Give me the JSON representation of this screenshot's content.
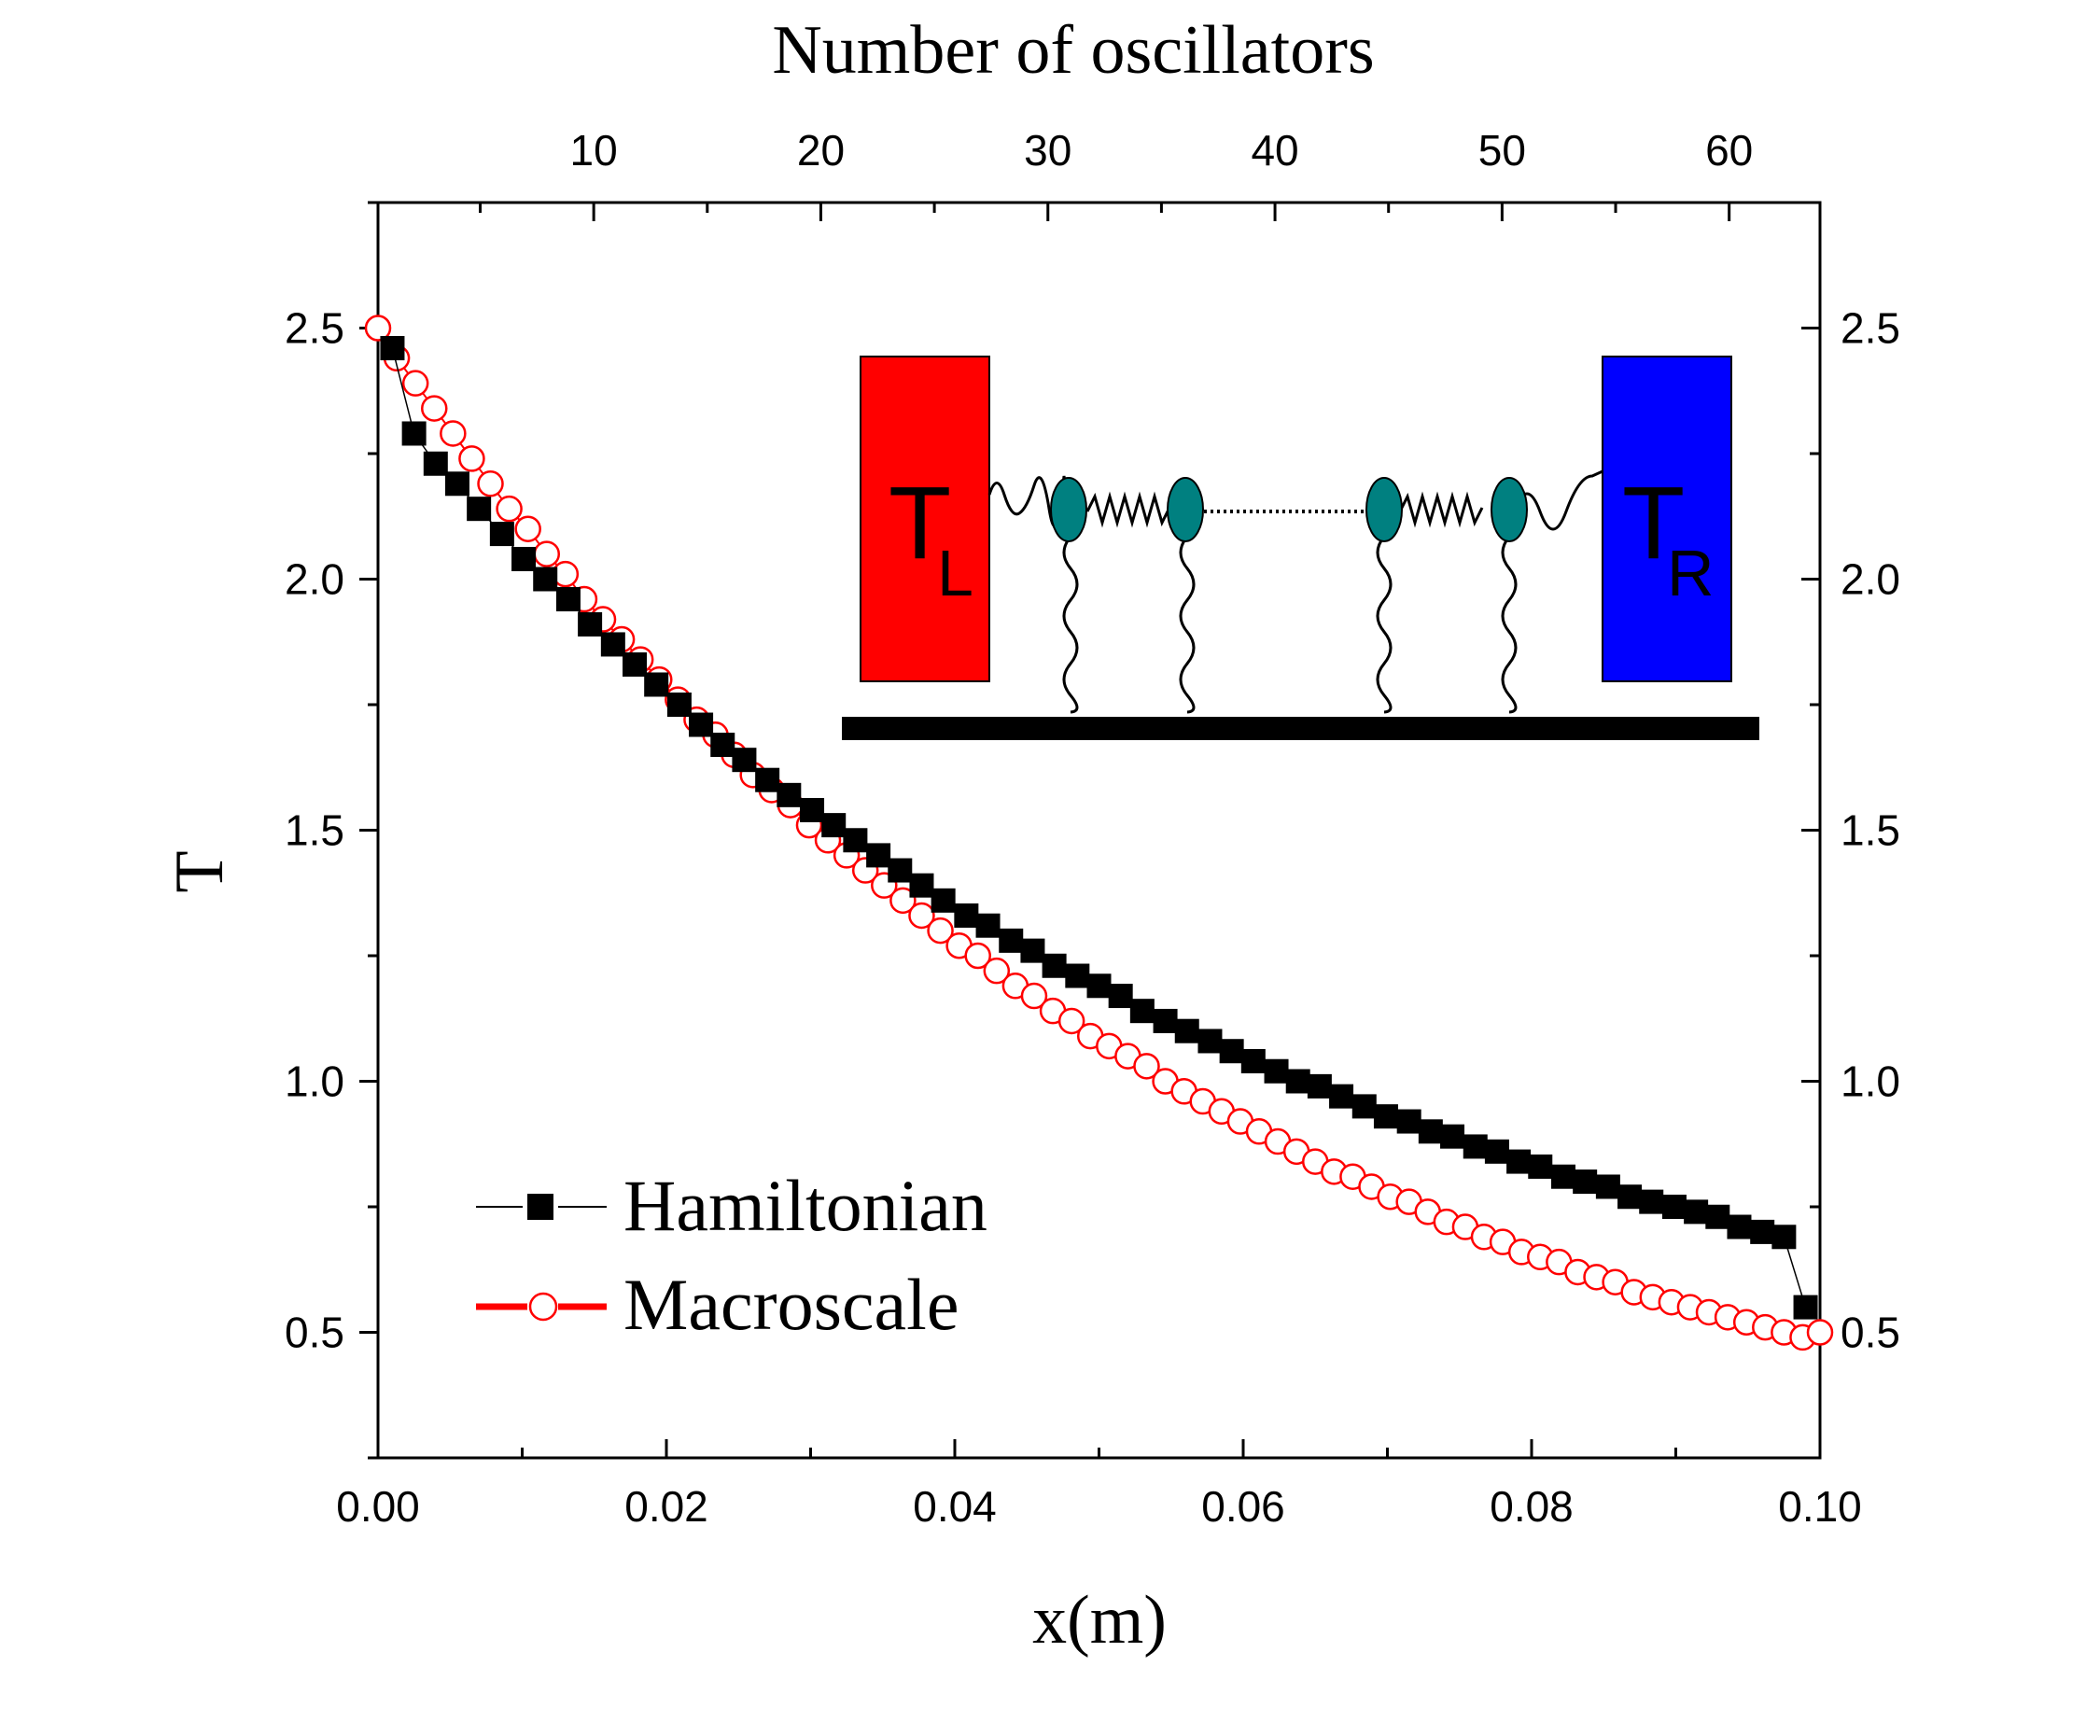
{
  "chart_data": {
    "type": "scatter",
    "title": "",
    "xlabel": "x(m)",
    "ylabel": "T",
    "top_xlabel": "Number of oscillators",
    "xlim": [
      0.0,
      0.1
    ],
    "ylim": [
      0.25,
      2.75
    ],
    "top_xlim": [
      0.5,
      64
    ],
    "x_ticks": [
      "0.00",
      "0.02",
      "0.04",
      "0.06",
      "0.08",
      "0.10"
    ],
    "y_ticks": [
      "0.5",
      "1.0",
      "1.5",
      "2.0",
      "2.5"
    ],
    "top_x_ticks": [
      "10",
      "20",
      "30",
      "40",
      "50",
      "60"
    ],
    "legend": {
      "placement": "bottom-left",
      "entries": [
        "Hamiltonian",
        "Macroscale"
      ]
    },
    "series": [
      {
        "name": "Hamiltonian",
        "marker": "filled-square",
        "color": "#000000",
        "x": [
          0.001,
          0.0025,
          0.004,
          0.0055,
          0.007,
          0.0086,
          0.0101,
          0.0116,
          0.0132,
          0.0147,
          0.0163,
          0.0178,
          0.0193,
          0.0209,
          0.0224,
          0.0239,
          0.0254,
          0.027,
          0.0285,
          0.0301,
          0.0316,
          0.0331,
          0.0347,
          0.0362,
          0.0377,
          0.0392,
          0.0408,
          0.0423,
          0.0439,
          0.0454,
          0.0469,
          0.0485,
          0.05,
          0.0515,
          0.053,
          0.0546,
          0.0561,
          0.0577,
          0.0592,
          0.0607,
          0.0623,
          0.0638,
          0.0653,
          0.0668,
          0.0684,
          0.0699,
          0.0715,
          0.073,
          0.0745,
          0.0761,
          0.0776,
          0.0791,
          0.0806,
          0.0822,
          0.0837,
          0.0853,
          0.0868,
          0.0883,
          0.0899,
          0.0914,
          0.0929,
          0.0944,
          0.096,
          0.0975,
          0.099
        ],
        "values": [
          2.46,
          2.29,
          2.23,
          2.19,
          2.14,
          2.09,
          2.04,
          2.0,
          1.96,
          1.91,
          1.87,
          1.83,
          1.79,
          1.75,
          1.71,
          1.67,
          1.64,
          1.6,
          1.57,
          1.54,
          1.51,
          1.48,
          1.45,
          1.42,
          1.39,
          1.36,
          1.33,
          1.31,
          1.28,
          1.26,
          1.23,
          1.21,
          1.19,
          1.17,
          1.14,
          1.12,
          1.1,
          1.08,
          1.06,
          1.04,
          1.02,
          1.0,
          0.99,
          0.97,
          0.95,
          0.93,
          0.92,
          0.9,
          0.89,
          0.87,
          0.86,
          0.84,
          0.83,
          0.81,
          0.8,
          0.79,
          0.77,
          0.76,
          0.75,
          0.74,
          0.73,
          0.71,
          0.7,
          0.69,
          0.55
        ]
      },
      {
        "name": "Macroscale",
        "marker": "open-circle",
        "color": "#ff0000",
        "x": [
          0.0,
          0.0013,
          0.0026,
          0.0039,
          0.0052,
          0.0065,
          0.0078,
          0.0091,
          0.0104,
          0.0117,
          0.013,
          0.0143,
          0.0156,
          0.0169,
          0.0182,
          0.0195,
          0.0208,
          0.0221,
          0.0234,
          0.0247,
          0.026,
          0.0273,
          0.0286,
          0.0299,
          0.0312,
          0.0325,
          0.0338,
          0.0351,
          0.0364,
          0.0377,
          0.039,
          0.0403,
          0.0416,
          0.0429,
          0.0442,
          0.0455,
          0.0468,
          0.0481,
          0.0494,
          0.0507,
          0.052,
          0.0533,
          0.0546,
          0.0559,
          0.0572,
          0.0585,
          0.0598,
          0.0611,
          0.0624,
          0.0637,
          0.065,
          0.0663,
          0.0676,
          0.0689,
          0.0702,
          0.0715,
          0.0728,
          0.0741,
          0.0754,
          0.0767,
          0.078,
          0.0793,
          0.0806,
          0.0819,
          0.0832,
          0.0845,
          0.0858,
          0.0871,
          0.0884,
          0.0897,
          0.091,
          0.0923,
          0.0936,
          0.0949,
          0.0962,
          0.0975,
          0.0988,
          0.1
        ],
        "values": [
          2.5,
          2.44,
          2.39,
          2.34,
          2.29,
          2.24,
          2.19,
          2.14,
          2.1,
          2.05,
          2.01,
          1.96,
          1.92,
          1.88,
          1.84,
          1.8,
          1.76,
          1.72,
          1.69,
          1.65,
          1.61,
          1.58,
          1.55,
          1.51,
          1.48,
          1.45,
          1.42,
          1.39,
          1.36,
          1.33,
          1.3,
          1.27,
          1.25,
          1.22,
          1.19,
          1.17,
          1.14,
          1.12,
          1.09,
          1.07,
          1.05,
          1.03,
          1.0,
          0.98,
          0.96,
          0.94,
          0.92,
          0.9,
          0.88,
          0.86,
          0.84,
          0.82,
          0.81,
          0.79,
          0.77,
          0.76,
          0.74,
          0.72,
          0.71,
          0.69,
          0.68,
          0.66,
          0.65,
          0.64,
          0.62,
          0.61,
          0.6,
          0.58,
          0.57,
          0.56,
          0.55,
          0.54,
          0.53,
          0.52,
          0.51,
          0.5,
          0.49,
          0.5
        ]
      }
    ],
    "inset": {
      "left_reservoir": {
        "label": "T",
        "subscript": "L",
        "color": "#ff0000"
      },
      "right_reservoir": {
        "label": "T",
        "subscript": "R",
        "color": "#0000ff"
      },
      "oscillator_color": "#008080"
    }
  }
}
